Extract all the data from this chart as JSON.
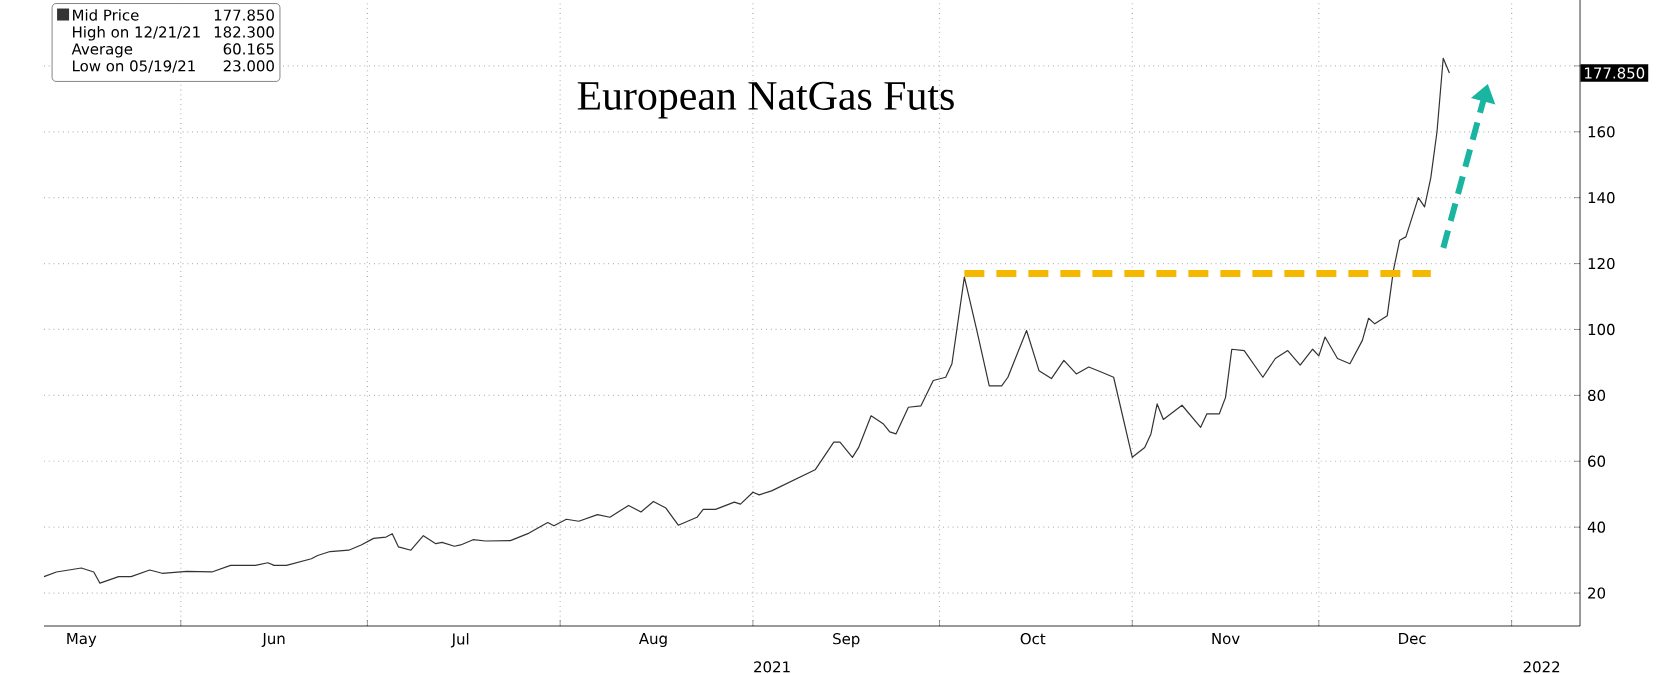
{
  "chart_data": {
    "type": "line",
    "title": "European NatGas Futs",
    "xlim": [
      "2021-05-10",
      "2022-01-12"
    ],
    "ylim": [
      10,
      200
    ],
    "xticks": [
      {
        "value": "2021-05-16",
        "label": "May"
      },
      {
        "value": "2021-06-01",
        "label": null
      },
      {
        "value": "2021-06-16",
        "label": "Jun"
      },
      {
        "value": "2021-07-01",
        "label": null
      },
      {
        "value": "2021-07-16",
        "label": "Jul"
      },
      {
        "value": "2021-08-01",
        "label": null
      },
      {
        "value": "2021-08-16",
        "label": "Aug"
      },
      {
        "value": "2021-09-01",
        "label": null
      },
      {
        "value": "2021-09-16",
        "label": "Sep"
      },
      {
        "value": "2021-10-01",
        "label": null
      },
      {
        "value": "2021-10-16",
        "label": "Oct"
      },
      {
        "value": "2021-11-01",
        "label": null
      },
      {
        "value": "2021-11-16",
        "label": "Nov"
      },
      {
        "value": "2021-12-01",
        "label": null
      },
      {
        "value": "2021-12-16",
        "label": "Dec"
      },
      {
        "value": "2022-01-01",
        "label": null
      }
    ],
    "yticks": [
      20,
      40,
      60,
      80,
      100,
      120,
      140,
      160,
      {
        "value": 180,
        "label": null
      }
    ],
    "grid": true,
    "legend": "top left",
    "series": [
      {
        "name": "Mid Price",
        "color": "#333333",
        "x": [
          "2021-05-10",
          "2021-05-12",
          "2021-05-16",
          "2021-05-18",
          "2021-05-19",
          "2021-05-22",
          "2021-05-24",
          "2021-05-27",
          "2021-05-29",
          "2021-06-02",
          "2021-06-06",
          "2021-06-09",
          "2021-06-13",
          "2021-06-15",
          "2021-06-16",
          "2021-06-18",
          "2021-06-22",
          "2021-06-23",
          "2021-06-25",
          "2021-06-28",
          "2021-06-30",
          "2021-07-02",
          "2021-07-04",
          "2021-07-05",
          "2021-07-06",
          "2021-07-08",
          "2021-07-10",
          "2021-07-12",
          "2021-07-13",
          "2021-07-15",
          "2021-07-16",
          "2021-07-18",
          "2021-07-20",
          "2021-07-24",
          "2021-07-27",
          "2021-07-30",
          "2021-07-31",
          "2021-08-02",
          "2021-08-04",
          "2021-08-07",
          "2021-08-09",
          "2021-08-12",
          "2021-08-14",
          "2021-08-16",
          "2021-08-18",
          "2021-08-20",
          "2021-08-23",
          "2021-08-24",
          "2021-08-26",
          "2021-08-29",
          "2021-08-30",
          "2021-09-01",
          "2021-09-02",
          "2021-09-04",
          "2021-09-11",
          "2021-09-14",
          "2021-09-15",
          "2021-09-17",
          "2021-09-18",
          "2021-09-20",
          "2021-09-22",
          "2021-09-23",
          "2021-09-24",
          "2021-09-26",
          "2021-09-28",
          "2021-09-30",
          "2021-10-02",
          "2021-10-03",
          "2021-10-05",
          "2021-10-07",
          "2021-10-09",
          "2021-10-11",
          "2021-10-12",
          "2021-10-15",
          "2021-10-17",
          "2021-10-19",
          "2021-10-21",
          "2021-10-23",
          "2021-10-25",
          "2021-10-27",
          "2021-10-29",
          "2021-11-01",
          "2021-11-03",
          "2021-11-04",
          "2021-11-05",
          "2021-11-06",
          "2021-11-09",
          "2021-11-12",
          "2021-11-13",
          "2021-11-15",
          "2021-11-16",
          "2021-11-17",
          "2021-11-19",
          "2021-11-22",
          "2021-11-24",
          "2021-11-26",
          "2021-11-28",
          "2021-11-30",
          "2021-12-01",
          "2021-12-02",
          "2021-12-04",
          "2021-12-06",
          "2021-12-08",
          "2021-12-09",
          "2021-12-10",
          "2021-12-12",
          "2021-12-13",
          "2021-12-14",
          "2021-12-15",
          "2021-12-17",
          "2021-12-18",
          "2021-12-19",
          "2021-12-20",
          "2021-12-21",
          "2021-12-22"
        ],
        "values": [
          25.0,
          26.4,
          27.6,
          26.4,
          23.0,
          25.0,
          25.0,
          27.0,
          26.0,
          26.6,
          26.4,
          28.4,
          28.4,
          29.2,
          28.4,
          28.4,
          30.4,
          31.4,
          32.6,
          33.0,
          34.6,
          36.6,
          37.0,
          38.0,
          34.0,
          33.0,
          37.4,
          35.0,
          35.4,
          34.2,
          34.6,
          36.2,
          35.8,
          35.9,
          38.2,
          41.4,
          40.4,
          42.4,
          41.8,
          43.8,
          43.0,
          46.6,
          44.6,
          47.8,
          45.8,
          40.6,
          43.0,
          45.4,
          45.4,
          47.6,
          47.0,
          50.6,
          49.8,
          51.0,
          57.4,
          65.8,
          65.8,
          61.2,
          64.2,
          73.8,
          71.3,
          68.9,
          68.3,
          76.4,
          76.8,
          84.5,
          85.5,
          89.6,
          115.9,
          99.7,
          82.9,
          82.9,
          85.5,
          99.7,
          87.5,
          85.1,
          90.6,
          86.5,
          88.6,
          87.1,
          85.5,
          61.2,
          64.2,
          68.3,
          77.4,
          72.7,
          77.0,
          70.3,
          74.4,
          74.4,
          79.4,
          94.0,
          93.6,
          85.5,
          91.2,
          93.6,
          89.2,
          94.0,
          92.0,
          97.7,
          91.2,
          89.6,
          96.7,
          103.4,
          101.7,
          104.2,
          118.0,
          127.1,
          128.1,
          140.0,
          137.2,
          146.0,
          160.0,
          182.3,
          177.85
        ]
      },
      {
        "color": "#f5b800",
        "line_style": "dashed",
        "x": [
          "2021-10-05",
          "2021-12-19"
        ],
        "values": [
          117,
          117
        ]
      }
    ],
    "annotations": [
      "177.850",
      "177.850",
      "High on 12/21/21",
      "182.300",
      "Average",
      "60.165",
      "Low on 05/19/21",
      "23.000",
      "2021",
      "2022"
    ]
  }
}
